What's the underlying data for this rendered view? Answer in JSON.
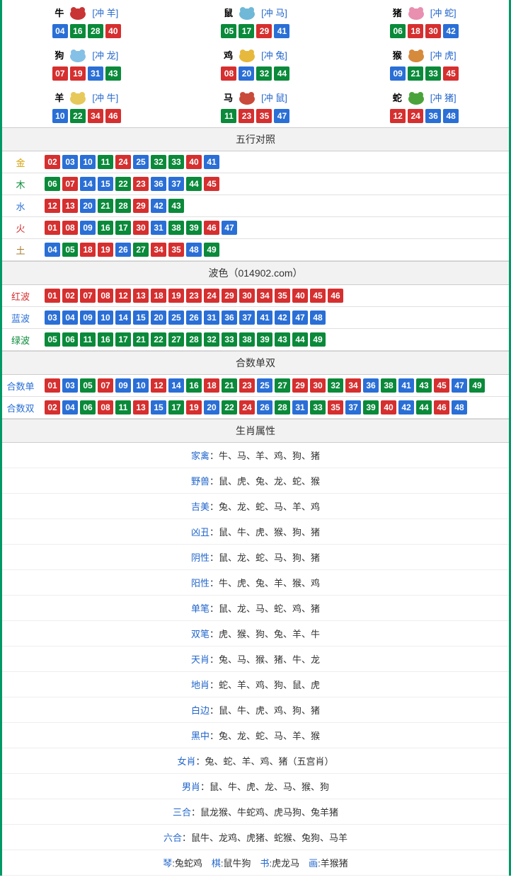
{
  "colors": {
    "red": "#d62f2f",
    "blue": "#2a6fd6",
    "green": "#0a8a3a",
    "gold_label": "#d6a000",
    "wood_label": "#0a8a3a",
    "water_label": "#2a6fd6",
    "fire_label": "#d62f2f",
    "earth_label": "#a67b2f",
    "red_label": "#d62f2f",
    "blue_label": "#2a6fd6",
    "green_label": "#0a8a3a"
  },
  "zodiac": [
    {
      "name": "牛",
      "conflict": "[冲 羊]",
      "icon_color": "#c93434",
      "balls": [
        {
          "n": "04",
          "c": "blue"
        },
        {
          "n": "16",
          "c": "green"
        },
        {
          "n": "28",
          "c": "green"
        },
        {
          "n": "40",
          "c": "red"
        }
      ]
    },
    {
      "name": "鼠",
      "conflict": "[冲 马]",
      "icon_color": "#6fb8d8",
      "balls": [
        {
          "n": "05",
          "c": "green"
        },
        {
          "n": "17",
          "c": "green"
        },
        {
          "n": "29",
          "c": "red"
        },
        {
          "n": "41",
          "c": "blue"
        }
      ]
    },
    {
      "name": "猪",
      "conflict": "[冲 蛇]",
      "icon_color": "#e98fb0",
      "balls": [
        {
          "n": "06",
          "c": "green"
        },
        {
          "n": "18",
          "c": "red"
        },
        {
          "n": "30",
          "c": "red"
        },
        {
          "n": "42",
          "c": "blue"
        }
      ]
    },
    {
      "name": "狗",
      "conflict": "[冲 龙]",
      "icon_color": "#85c0e6",
      "balls": [
        {
          "n": "07",
          "c": "red"
        },
        {
          "n": "19",
          "c": "red"
        },
        {
          "n": "31",
          "c": "blue"
        },
        {
          "n": "43",
          "c": "green"
        }
      ]
    },
    {
      "name": "鸡",
      "conflict": "[冲 兔]",
      "icon_color": "#e6b93c",
      "balls": [
        {
          "n": "08",
          "c": "red"
        },
        {
          "n": "20",
          "c": "blue"
        },
        {
          "n": "32",
          "c": "green"
        },
        {
          "n": "44",
          "c": "green"
        }
      ]
    },
    {
      "name": "猴",
      "conflict": "[冲 虎]",
      "icon_color": "#d68a3c",
      "balls": [
        {
          "n": "09",
          "c": "blue"
        },
        {
          "n": "21",
          "c": "green"
        },
        {
          "n": "33",
          "c": "green"
        },
        {
          "n": "45",
          "c": "red"
        }
      ]
    },
    {
      "name": "羊",
      "conflict": "[冲 牛]",
      "icon_color": "#e6c95a",
      "balls": [
        {
          "n": "10",
          "c": "blue"
        },
        {
          "n": "22",
          "c": "green"
        },
        {
          "n": "34",
          "c": "red"
        },
        {
          "n": "46",
          "c": "red"
        }
      ]
    },
    {
      "name": "马",
      "conflict": "[冲 鼠]",
      "icon_color": "#c94a3a",
      "balls": [
        {
          "n": "11",
          "c": "green"
        },
        {
          "n": "23",
          "c": "red"
        },
        {
          "n": "35",
          "c": "red"
        },
        {
          "n": "47",
          "c": "blue"
        }
      ]
    },
    {
      "name": "蛇",
      "conflict": "[冲 猪]",
      "icon_color": "#4aa33a",
      "balls": [
        {
          "n": "12",
          "c": "red"
        },
        {
          "n": "24",
          "c": "red"
        },
        {
          "n": "36",
          "c": "blue"
        },
        {
          "n": "48",
          "c": "blue"
        }
      ]
    }
  ],
  "sections": {
    "wuxing_title": "五行对照",
    "bose_title": "波色（014902.com）",
    "heshu_title": "合数单双",
    "shengxiao_title": "生肖属性"
  },
  "wuxing": [
    {
      "label": "金",
      "label_color": "gold_label",
      "balls": [
        {
          "n": "02",
          "c": "red"
        },
        {
          "n": "03",
          "c": "blue"
        },
        {
          "n": "10",
          "c": "blue"
        },
        {
          "n": "11",
          "c": "green"
        },
        {
          "n": "24",
          "c": "red"
        },
        {
          "n": "25",
          "c": "blue"
        },
        {
          "n": "32",
          "c": "green"
        },
        {
          "n": "33",
          "c": "green"
        },
        {
          "n": "40",
          "c": "red"
        },
        {
          "n": "41",
          "c": "blue"
        }
      ]
    },
    {
      "label": "木",
      "label_color": "wood_label",
      "balls": [
        {
          "n": "06",
          "c": "green"
        },
        {
          "n": "07",
          "c": "red"
        },
        {
          "n": "14",
          "c": "blue"
        },
        {
          "n": "15",
          "c": "blue"
        },
        {
          "n": "22",
          "c": "green"
        },
        {
          "n": "23",
          "c": "red"
        },
        {
          "n": "36",
          "c": "blue"
        },
        {
          "n": "37",
          "c": "blue"
        },
        {
          "n": "44",
          "c": "green"
        },
        {
          "n": "45",
          "c": "red"
        }
      ]
    },
    {
      "label": "水",
      "label_color": "water_label",
      "balls": [
        {
          "n": "12",
          "c": "red"
        },
        {
          "n": "13",
          "c": "red"
        },
        {
          "n": "20",
          "c": "blue"
        },
        {
          "n": "21",
          "c": "green"
        },
        {
          "n": "28",
          "c": "green"
        },
        {
          "n": "29",
          "c": "red"
        },
        {
          "n": "42",
          "c": "blue"
        },
        {
          "n": "43",
          "c": "green"
        }
      ]
    },
    {
      "label": "火",
      "label_color": "fire_label",
      "balls": [
        {
          "n": "01",
          "c": "red"
        },
        {
          "n": "08",
          "c": "red"
        },
        {
          "n": "09",
          "c": "blue"
        },
        {
          "n": "16",
          "c": "green"
        },
        {
          "n": "17",
          "c": "green"
        },
        {
          "n": "30",
          "c": "red"
        },
        {
          "n": "31",
          "c": "blue"
        },
        {
          "n": "38",
          "c": "green"
        },
        {
          "n": "39",
          "c": "green"
        },
        {
          "n": "46",
          "c": "red"
        },
        {
          "n": "47",
          "c": "blue"
        }
      ]
    },
    {
      "label": "土",
      "label_color": "earth_label",
      "balls": [
        {
          "n": "04",
          "c": "blue"
        },
        {
          "n": "05",
          "c": "green"
        },
        {
          "n": "18",
          "c": "red"
        },
        {
          "n": "19",
          "c": "red"
        },
        {
          "n": "26",
          "c": "blue"
        },
        {
          "n": "27",
          "c": "green"
        },
        {
          "n": "34",
          "c": "red"
        },
        {
          "n": "35",
          "c": "red"
        },
        {
          "n": "48",
          "c": "blue"
        },
        {
          "n": "49",
          "c": "green"
        }
      ]
    }
  ],
  "bose": [
    {
      "label": "红波",
      "label_color": "red_label",
      "balls": [
        {
          "n": "01",
          "c": "red"
        },
        {
          "n": "02",
          "c": "red"
        },
        {
          "n": "07",
          "c": "red"
        },
        {
          "n": "08",
          "c": "red"
        },
        {
          "n": "12",
          "c": "red"
        },
        {
          "n": "13",
          "c": "red"
        },
        {
          "n": "18",
          "c": "red"
        },
        {
          "n": "19",
          "c": "red"
        },
        {
          "n": "23",
          "c": "red"
        },
        {
          "n": "24",
          "c": "red"
        },
        {
          "n": "29",
          "c": "red"
        },
        {
          "n": "30",
          "c": "red"
        },
        {
          "n": "34",
          "c": "red"
        },
        {
          "n": "35",
          "c": "red"
        },
        {
          "n": "40",
          "c": "red"
        },
        {
          "n": "45",
          "c": "red"
        },
        {
          "n": "46",
          "c": "red"
        }
      ]
    },
    {
      "label": "蓝波",
      "label_color": "blue_label",
      "balls": [
        {
          "n": "03",
          "c": "blue"
        },
        {
          "n": "04",
          "c": "blue"
        },
        {
          "n": "09",
          "c": "blue"
        },
        {
          "n": "10",
          "c": "blue"
        },
        {
          "n": "14",
          "c": "blue"
        },
        {
          "n": "15",
          "c": "blue"
        },
        {
          "n": "20",
          "c": "blue"
        },
        {
          "n": "25",
          "c": "blue"
        },
        {
          "n": "26",
          "c": "blue"
        },
        {
          "n": "31",
          "c": "blue"
        },
        {
          "n": "36",
          "c": "blue"
        },
        {
          "n": "37",
          "c": "blue"
        },
        {
          "n": "41",
          "c": "blue"
        },
        {
          "n": "42",
          "c": "blue"
        },
        {
          "n": "47",
          "c": "blue"
        },
        {
          "n": "48",
          "c": "blue"
        }
      ]
    },
    {
      "label": "绿波",
      "label_color": "green_label",
      "balls": [
        {
          "n": "05",
          "c": "green"
        },
        {
          "n": "06",
          "c": "green"
        },
        {
          "n": "11",
          "c": "green"
        },
        {
          "n": "16",
          "c": "green"
        },
        {
          "n": "17",
          "c": "green"
        },
        {
          "n": "21",
          "c": "green"
        },
        {
          "n": "22",
          "c": "green"
        },
        {
          "n": "27",
          "c": "green"
        },
        {
          "n": "28",
          "c": "green"
        },
        {
          "n": "32",
          "c": "green"
        },
        {
          "n": "33",
          "c": "green"
        },
        {
          "n": "38",
          "c": "green"
        },
        {
          "n": "39",
          "c": "green"
        },
        {
          "n": "43",
          "c": "green"
        },
        {
          "n": "44",
          "c": "green"
        },
        {
          "n": "49",
          "c": "green"
        }
      ]
    }
  ],
  "heshu": [
    {
      "label": "合数单",
      "label_color": "blue_label",
      "balls": [
        {
          "n": "01",
          "c": "red"
        },
        {
          "n": "03",
          "c": "blue"
        },
        {
          "n": "05",
          "c": "green"
        },
        {
          "n": "07",
          "c": "red"
        },
        {
          "n": "09",
          "c": "blue"
        },
        {
          "n": "10",
          "c": "blue"
        },
        {
          "n": "12",
          "c": "red"
        },
        {
          "n": "14",
          "c": "blue"
        },
        {
          "n": "16",
          "c": "green"
        },
        {
          "n": "18",
          "c": "red"
        },
        {
          "n": "21",
          "c": "green"
        },
        {
          "n": "23",
          "c": "red"
        },
        {
          "n": "25",
          "c": "blue"
        },
        {
          "n": "27",
          "c": "green"
        },
        {
          "n": "29",
          "c": "red"
        },
        {
          "n": "30",
          "c": "red"
        },
        {
          "n": "32",
          "c": "green"
        },
        {
          "n": "34",
          "c": "red"
        },
        {
          "n": "36",
          "c": "blue"
        },
        {
          "n": "38",
          "c": "green"
        },
        {
          "n": "41",
          "c": "blue"
        },
        {
          "n": "43",
          "c": "green"
        },
        {
          "n": "45",
          "c": "red"
        },
        {
          "n": "47",
          "c": "blue"
        },
        {
          "n": "49",
          "c": "green"
        }
      ]
    },
    {
      "label": "合数双",
      "label_color": "blue_label",
      "balls": [
        {
          "n": "02",
          "c": "red"
        },
        {
          "n": "04",
          "c": "blue"
        },
        {
          "n": "06",
          "c": "green"
        },
        {
          "n": "08",
          "c": "red"
        },
        {
          "n": "11",
          "c": "green"
        },
        {
          "n": "13",
          "c": "red"
        },
        {
          "n": "15",
          "c": "blue"
        },
        {
          "n": "17",
          "c": "green"
        },
        {
          "n": "19",
          "c": "red"
        },
        {
          "n": "20",
          "c": "blue"
        },
        {
          "n": "22",
          "c": "green"
        },
        {
          "n": "24",
          "c": "red"
        },
        {
          "n": "26",
          "c": "blue"
        },
        {
          "n": "28",
          "c": "green"
        },
        {
          "n": "31",
          "c": "blue"
        },
        {
          "n": "33",
          "c": "green"
        },
        {
          "n": "35",
          "c": "red"
        },
        {
          "n": "37",
          "c": "blue"
        },
        {
          "n": "39",
          "c": "green"
        },
        {
          "n": "40",
          "c": "red"
        },
        {
          "n": "42",
          "c": "blue"
        },
        {
          "n": "44",
          "c": "green"
        },
        {
          "n": "46",
          "c": "red"
        },
        {
          "n": "48",
          "c": "blue"
        }
      ]
    }
  ],
  "attributes": [
    {
      "label": "家禽",
      "value": "：牛、马、羊、鸡、狗、猪"
    },
    {
      "label": "野兽",
      "value": "：鼠、虎、兔、龙、蛇、猴"
    },
    {
      "label": "吉美",
      "value": "：兔、龙、蛇、马、羊、鸡"
    },
    {
      "label": "凶丑",
      "value": "：鼠、牛、虎、猴、狗、猪"
    },
    {
      "label": "阴性",
      "value": "：鼠、龙、蛇、马、狗、猪"
    },
    {
      "label": "阳性",
      "value": "：牛、虎、兔、羊、猴、鸡"
    },
    {
      "label": "单笔",
      "value": "：鼠、龙、马、蛇、鸡、猪"
    },
    {
      "label": "双笔",
      "value": "：虎、猴、狗、兔、羊、牛"
    },
    {
      "label": "天肖",
      "value": "：兔、马、猴、猪、牛、龙"
    },
    {
      "label": "地肖",
      "value": "：蛇、羊、鸡、狗、鼠、虎"
    },
    {
      "label": "白边",
      "value": "：鼠、牛、虎、鸡、狗、猪"
    },
    {
      "label": "黑中",
      "value": "：兔、龙、蛇、马、羊、猴"
    },
    {
      "label": "女肖",
      "value": "：兔、蛇、羊、鸡、猪（五宫肖）"
    },
    {
      "label": "男肖",
      "value": "：鼠、牛、虎、龙、马、猴、狗"
    },
    {
      "label": "三合",
      "value": "：鼠龙猴、牛蛇鸡、虎马狗、兔羊猪"
    },
    {
      "label": "六合",
      "value": "：鼠牛、龙鸡、虎猪、蛇猴、兔狗、马羊"
    }
  ],
  "footer_pairs": [
    {
      "k": "琴",
      "v": ":兔蛇鸡"
    },
    {
      "k": "棋",
      "v": ":鼠牛狗"
    },
    {
      "k": "书",
      "v": ":虎龙马"
    },
    {
      "k": "画",
      "v": ":羊猴猪"
    }
  ]
}
